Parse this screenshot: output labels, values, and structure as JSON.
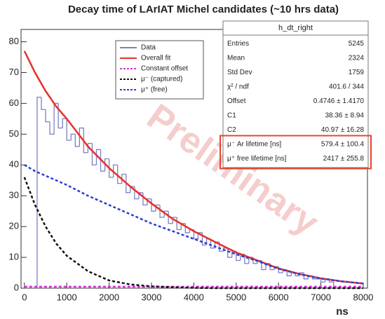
{
  "chart_data": {
    "type": "histogram",
    "title": "Decay time of LArIAT Michel candidates (~10 hrs data)",
    "xlabel": "ns",
    "annotation": "Preliminary",
    "xlim": [
      -80,
      8100
    ],
    "ylim": [
      0,
      84
    ],
    "xticks": [
      0,
      1000,
      2000,
      3000,
      4000,
      5000,
      6000,
      7000,
      8000
    ],
    "yticks": [
      0,
      10,
      20,
      30,
      40,
      50,
      60,
      70,
      80
    ],
    "histogram": {
      "name": "Data",
      "color": "#7b7fc4",
      "bins": [
        300,
        400,
        500,
        600,
        700,
        800,
        900,
        1000,
        1100,
        1200,
        1300,
        1400,
        1500,
        1600,
        1700,
        1800,
        1900,
        2000,
        2100,
        2200,
        2300,
        2400,
        2500,
        2600,
        2700,
        2800,
        2900,
        3000,
        3100,
        3200,
        3300,
        3400,
        3500,
        3600,
        3700,
        3800,
        3900,
        4000,
        4100,
        4200,
        4300,
        4400,
        4500,
        4600,
        4700,
        4800,
        4900,
        5000,
        5100,
        5200,
        5300,
        5400,
        5500,
        5600,
        5700,
        5800,
        5900,
        6000,
        6100,
        6200,
        6300,
        6400,
        6500,
        6600,
        6700,
        6800,
        6900,
        7000,
        7100,
        7200,
        7300
      ],
      "counts": [
        62,
        58,
        54,
        50,
        60,
        52,
        55,
        48,
        50,
        46,
        52,
        44,
        47,
        40,
        45,
        38,
        42,
        36,
        40,
        34,
        37,
        31,
        33,
        29,
        31,
        27,
        29,
        25,
        27,
        23,
        25,
        21,
        23,
        19,
        21,
        18,
        19,
        16,
        18,
        14,
        16,
        13,
        15,
        12,
        13,
        10,
        12,
        9,
        11,
        8,
        10,
        8,
        9,
        6,
        8,
        6,
        7,
        5,
        6,
        4,
        5,
        4,
        5,
        3,
        4,
        3,
        3,
        2,
        3,
        2
      ]
    },
    "x": [
      0,
      250,
      500,
      750,
      1000,
      1500,
      2000,
      2500,
      3000,
      3500,
      4000,
      4500,
      5000,
      5500,
      6000,
      6500,
      7000,
      7500,
      8000
    ],
    "series": [
      {
        "name": "Overall fit",
        "color": "#e8302a",
        "dashed": false,
        "values": [
          77,
          70,
          64,
          59,
          55,
          46,
          39,
          33,
          27.5,
          22.5,
          18.5,
          15,
          11.6,
          9,
          6.4,
          4.6,
          3.2,
          2.2,
          1.5
        ]
      },
      {
        "name": "Constant offset",
        "color": "#d633d6",
        "dashed": true,
        "values": [
          0.47,
          0.47,
          0.47,
          0.47,
          0.47,
          0.47,
          0.47,
          0.47,
          0.47,
          0.47,
          0.47,
          0.47,
          0.47,
          0.47,
          0.47,
          0.47,
          0.47,
          0.47,
          0.47
        ]
      },
      {
        "name": "μ⁻ (captured)",
        "color": "#111111",
        "dashed": true,
        "values": [
          36,
          27,
          20,
          14.5,
          10.5,
          5.5,
          2.5,
          1.2,
          0.6,
          0.3,
          0.1,
          0,
          0,
          0,
          0,
          0,
          0,
          0,
          0
        ]
      },
      {
        "name": "μ⁺ (free)",
        "color": "#2c3fd6",
        "dashed": true,
        "values": [
          40,
          38,
          36.5,
          35,
          33.5,
          30,
          27,
          24,
          21,
          18.5,
          16,
          13.5,
          11,
          8.8,
          6.3,
          4.5,
          3.1,
          2.2,
          1.5
        ]
      }
    ],
    "stats": {
      "title": "h_dt_right",
      "rows": [
        [
          "Entries",
          5245
        ],
        [
          "Mean",
          2324
        ],
        [
          "Std Dev",
          1759
        ],
        [
          "χ² / ndf",
          "401.6 / 344"
        ],
        [
          "Offset",
          "0.4746 ± 1.4170"
        ],
        [
          "C1",
          "38.36 ± 8.94"
        ],
        [
          "C2",
          "40.97 ± 16.28"
        ],
        [
          "μ⁻ Ar lifetime [ns]",
          "579.4 ± 100.4"
        ],
        [
          "μ⁺ free lifetime [ns]",
          "2417 ± 255.8"
        ]
      ]
    }
  }
}
